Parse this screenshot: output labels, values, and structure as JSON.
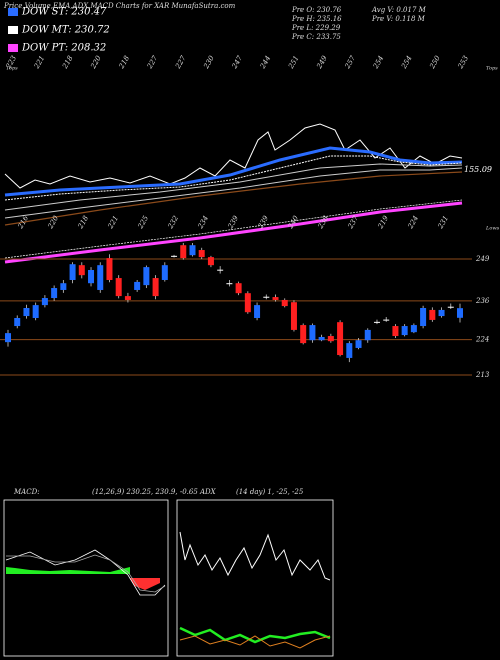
{
  "chart_data": {
    "type": "candlestick",
    "title": "Price,Volume,EMA,ADX,MACD Charts for XAR MunafaSutra.com",
    "indicators": [
      {
        "name": "DOW ST: 230.47",
        "color": "#2a6cff"
      },
      {
        "name": "DOW MT: 230.72",
        "color": "#ffffff"
      },
      {
        "name": "DOW PT: 208.32",
        "color": "#ff44ff"
      }
    ],
    "info": [
      "Pre  O: 230.76",
      "Pre  H: 235.16",
      "Pre  L: 229.29",
      "Pre  C: 233.75",
      "Avg V: 0.017 M",
      "Pre  V: 0.118 M"
    ],
    "tops_title": "Tops",
    "lows_title": "Lows",
    "tops": [
      "223",
      "221",
      "218",
      "220",
      "218",
      "227",
      "227",
      "230",
      "247",
      "244",
      "251",
      "249",
      "257",
      "254",
      "254",
      "250",
      "253"
    ],
    "lows": [
      "216",
      "220",
      "218",
      "221",
      "225",
      "232",
      "234",
      "239",
      "239",
      "240",
      "238",
      "237",
      "219",
      "224",
      "231"
    ],
    "overlay_label": "155.09",
    "ohlc": [
      [
        223.2,
        227.0,
        221.8,
        226.0
      ],
      [
        228.2,
        231.5,
        227.5,
        230.7
      ],
      [
        231.3,
        234.8,
        230.5,
        233.8
      ],
      [
        230.7,
        235.5,
        230.0,
        234.7
      ],
      [
        234.7,
        237.8,
        234.0,
        236.9
      ],
      [
        236.9,
        240.8,
        236.0,
        240.0
      ],
      [
        239.4,
        242.5,
        238.5,
        241.5
      ],
      [
        242.5,
        248.0,
        241.5,
        247.4
      ],
      [
        247.1,
        248.0,
        243.0,
        244.0
      ],
      [
        241.5,
        246.5,
        240.5,
        245.6
      ],
      [
        239.4,
        248.0,
        238.5,
        247.1
      ],
      [
        249.3,
        250.5,
        241.8,
        242.5
      ],
      [
        243.1,
        244.0,
        236.8,
        237.5
      ],
      [
        237.5,
        238.5,
        235.5,
        236.3
      ],
      [
        239.4,
        242.5,
        238.8,
        241.9
      ],
      [
        240.9,
        247.0,
        240.0,
        246.5
      ],
      [
        243.1,
        244.0,
        236.5,
        237.5
      ],
      [
        242.5,
        248.0,
        242.0,
        247.1
      ],
      [
        249.9,
        250.3,
        249.5,
        250.0
      ],
      [
        253.3,
        254.0,
        248.8,
        249.3
      ],
      [
        250.2,
        254.0,
        249.8,
        253.3
      ],
      [
        251.8,
        252.5,
        249.0,
        249.6
      ],
      [
        249.6,
        250.0,
        246.5,
        247.1
      ],
      [
        245.6,
        246.8,
        244.5,
        245.7
      ],
      [
        241.5,
        242.5,
        240.5,
        241.4
      ],
      [
        241.5,
        242.0,
        237.8,
        238.4
      ],
      [
        238.4,
        239.0,
        232.0,
        232.5
      ],
      [
        230.7,
        235.5,
        230.0,
        234.7
      ],
      [
        237.2,
        238.0,
        236.5,
        237.3
      ],
      [
        237.2,
        238.0,
        235.8,
        236.3
      ],
      [
        236.3,
        236.8,
        234.0,
        234.4
      ],
      [
        235.6,
        236.2,
        226.5,
        227.0
      ],
      [
        228.5,
        229.0,
        222.5,
        222.9
      ],
      [
        223.8,
        229.0,
        223.0,
        228.5
      ],
      [
        223.8,
        225.5,
        223.5,
        224.8
      ],
      [
        225.1,
        225.8,
        223.0,
        223.5
      ],
      [
        229.4,
        230.0,
        218.8,
        219.2
      ],
      [
        218.3,
        223.5,
        217.0,
        222.9
      ],
      [
        221.4,
        224.5,
        221.0,
        223.8
      ],
      [
        223.8,
        227.5,
        223.0,
        227.0
      ],
      [
        229.4,
        230.2,
        228.8,
        229.5
      ],
      [
        230.1,
        231.0,
        229.5,
        230.2
      ],
      [
        228.2,
        228.8,
        224.5,
        225.1
      ],
      [
        225.4,
        228.8,
        225.0,
        228.2
      ],
      [
        226.3,
        229.0,
        226.0,
        228.5
      ],
      [
        228.2,
        234.5,
        227.5,
        233.8
      ],
      [
        233.2,
        234.0,
        229.5,
        230.1
      ],
      [
        231.3,
        234.0,
        230.8,
        233.2
      ],
      [
        234.1,
        235.2,
        233.5,
        234.2
      ],
      [
        230.76,
        235.16,
        229.29,
        233.75
      ]
    ],
    "up_color": "#1e6bff",
    "down_color": "#ff2020",
    "doji_color": "#ffffff",
    "ylim": [
      180.4,
      310.8
    ],
    "yticks": [
      213,
      224,
      236,
      249
    ],
    "grid": true,
    "grid_color": "#8b4a1a",
    "macd": {
      "title": "MACD:",
      "params": "(12,26,9) 230.25, 230.9, -0.65"
    },
    "adx": {
      "title": "ADX",
      "params": "(14 day) 1, -25, -25"
    }
  }
}
